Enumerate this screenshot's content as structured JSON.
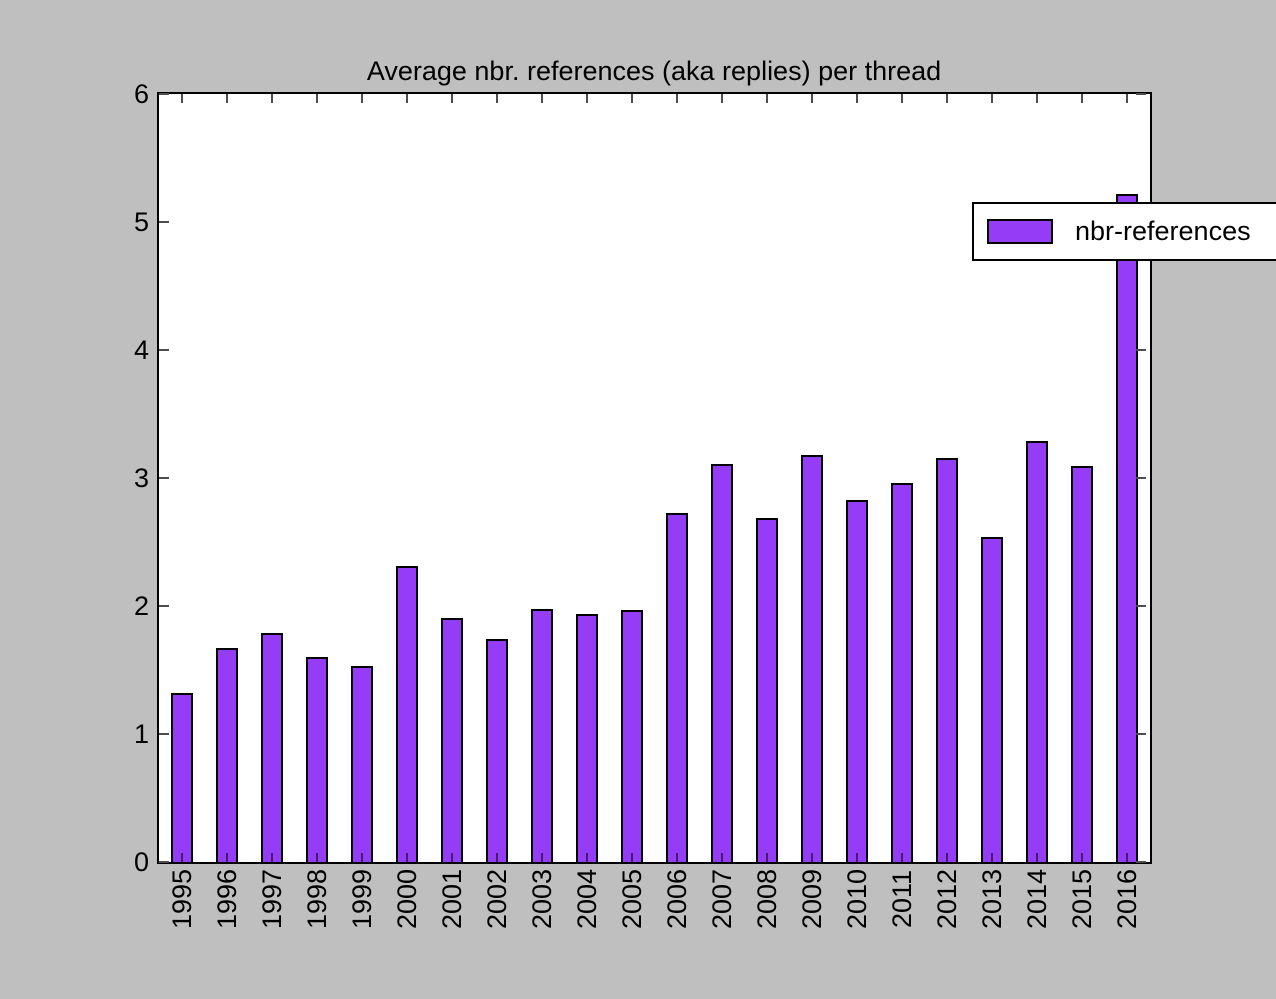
{
  "figure": {
    "background": "#bfbfbf",
    "plot_background": "#ffffff"
  },
  "chart_data": {
    "type": "bar",
    "title": "Average nbr. references (aka replies) per thread",
    "categories": [
      "1995",
      "1996",
      "1997",
      "1998",
      "1999",
      "2000",
      "2001",
      "2002",
      "2003",
      "2004",
      "2005",
      "2006",
      "2007",
      "2008",
      "2009",
      "2010",
      "2011",
      "2012",
      "2013",
      "2014",
      "2015",
      "2016"
    ],
    "series": [
      {
        "name": "nbr-references",
        "values": [
          1.32,
          1.67,
          1.79,
          1.6,
          1.53,
          2.31,
          1.91,
          1.74,
          1.98,
          1.94,
          1.97,
          2.73,
          3.11,
          2.69,
          3.18,
          2.83,
          2.96,
          3.16,
          2.54,
          3.29,
          3.09,
          5.22
        ]
      }
    ],
    "xlabel": "",
    "ylabel": "",
    "ylim": [
      0,
      6
    ],
    "yticks": [
      0,
      1,
      2,
      3,
      4,
      5,
      6
    ],
    "x_tick_label_rotation": 90,
    "grid": false,
    "legend": {
      "position": "upper right",
      "entries": [
        "nbr-references"
      ]
    },
    "bar_color": "#953cf7",
    "bar_edge_color": "#000000"
  }
}
